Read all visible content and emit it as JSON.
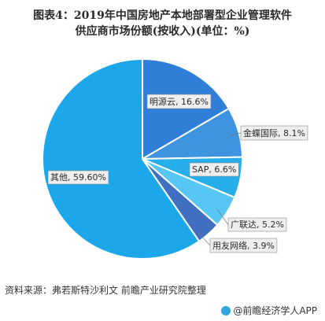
{
  "title_line1": "图表4：2019年中国房地产本地部署型企业管理软件",
  "title_line2": "供应商市场份额(按收入)(单位：%)",
  "source": "资料来源：弗若斯特沙利文 前瞻产业研究院整理",
  "brand": "@前瞻经济学人APP",
  "chart_data": {
    "type": "pie",
    "slices": [
      {
        "label": "明源云",
        "value": 16.6,
        "display": "明源云, 16.6%",
        "color": "#2f7fd8"
      },
      {
        "label": "金蝶国际",
        "value": 8.1,
        "display": "金蝶国际, 8.1%",
        "color": "#3f94df"
      },
      {
        "label": "SAP",
        "value": 6.6,
        "display": "SAP, 6.6%",
        "color": "#26aeea"
      },
      {
        "label": "广联达",
        "value": 5.2,
        "display": "广联达, 5.2%",
        "color": "#56c6f4"
      },
      {
        "label": "用友网络",
        "value": 3.9,
        "display": "用友网络, 3.9%",
        "color": "#3f6fbe"
      },
      {
        "label": "其他",
        "value": 59.6,
        "display": "其他, 59.60%",
        "color": "#1ca7ea"
      }
    ]
  }
}
